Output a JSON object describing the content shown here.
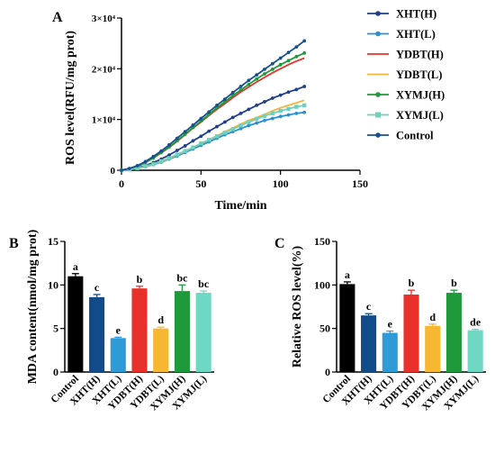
{
  "chart_data": [
    {
      "panel_label": "A",
      "type": "line",
      "xlabel": "Time/min",
      "ylabel": "ROS level(RFU/mg prot)",
      "xlim": [
        0,
        150
      ],
      "ylim": [
        0,
        30000
      ],
      "x_ticks": [
        "0",
        "50",
        "100",
        "150"
      ],
      "y_ticks": [
        "0",
        "1×10⁴",
        "2×10⁴",
        "3×10⁴"
      ],
      "x": [
        0,
        5,
        10,
        15,
        20,
        25,
        30,
        35,
        40,
        45,
        50,
        55,
        60,
        65,
        70,
        75,
        80,
        85,
        90,
        95,
        100,
        105,
        110,
        115
      ],
      "legend_position": "right",
      "series": [
        {
          "name": "XHT(H)",
          "color": "#1f3f8a",
          "marker": "circle",
          "values": [
            0,
            200,
            500,
            900,
            1500,
            2200,
            3000,
            3900,
            4800,
            5800,
            6700,
            7700,
            8600,
            9500,
            10400,
            11200,
            12000,
            12800,
            13500,
            14200,
            14800,
            15400,
            15900,
            16500
          ]
        },
        {
          "name": "XHT(L)",
          "color": "#2b8fd0",
          "marker": "circle",
          "values": [
            0,
            150,
            400,
            700,
            1100,
            1600,
            2200,
            2800,
            3500,
            4200,
            4900,
            5600,
            6300,
            7000,
            7600,
            8200,
            8800,
            9300,
            9800,
            10200,
            10600,
            10900,
            11200,
            11400
          ]
        },
        {
          "name": "YDBT(H)",
          "color": "#e8312a",
          "marker": "none",
          "values": [
            0,
            300,
            800,
            1500,
            2400,
            3400,
            4500,
            5700,
            7000,
            8300,
            9500,
            10800,
            12000,
            13100,
            14300,
            15400,
            16400,
            17400,
            18300,
            19200,
            20000,
            20800,
            21500,
            22100
          ]
        },
        {
          "name": "YDBT(L)",
          "color": "#f5b43a",
          "marker": "none",
          "values": [
            0,
            150,
            400,
            700,
            1200,
            1700,
            2300,
            3000,
            3700,
            4500,
            5200,
            6000,
            6800,
            7600,
            8300,
            9100,
            9800,
            10400,
            11000,
            11700,
            12300,
            12800,
            13300,
            13800
          ]
        },
        {
          "name": "XYMJ(H)",
          "color": "#1e9a3b",
          "marker": "circle",
          "values": [
            0,
            300,
            800,
            1500,
            2400,
            3500,
            4600,
            5800,
            7100,
            8400,
            9700,
            11000,
            12300,
            13500,
            14700,
            15800,
            16900,
            18000,
            19000,
            19900,
            20800,
            21600,
            22400,
            23100
          ]
        },
        {
          "name": "XYMJ(L)",
          "color": "#6fd1bd",
          "marker": "square",
          "values": [
            0,
            150,
            400,
            800,
            1200,
            1800,
            2400,
            3100,
            3800,
            4500,
            5300,
            6000,
            6700,
            7400,
            8100,
            8800,
            9500,
            10100,
            10700,
            11200,
            11700,
            12100,
            12500,
            12800
          ]
        },
        {
          "name": "Control",
          "color": "#1a4f8f",
          "marker": "circle",
          "values": [
            0,
            350,
            900,
            1700,
            2700,
            3800,
            5000,
            6300,
            7600,
            8900,
            10200,
            11500,
            12800,
            14000,
            15300,
            16500,
            17700,
            18800,
            19900,
            21000,
            22100,
            23200,
            24300,
            25500
          ]
        }
      ]
    },
    {
      "panel_label": "B",
      "type": "bar",
      "ylabel": "MDA content(nmol/mg prot)",
      "ylim": [
        0,
        15
      ],
      "y_ticks": [
        "0",
        "5",
        "10",
        "15"
      ],
      "categories": [
        "Control",
        "XHT(H)",
        "XHT(L)",
        "YDBT(H)",
        "YDBT(L)",
        "XYMJ(H)",
        "XYMJ(L)"
      ],
      "values": [
        11.0,
        8.6,
        3.9,
        9.6,
        5.0,
        9.3,
        9.1
      ],
      "errors": [
        0.3,
        0.3,
        0.1,
        0.25,
        0.15,
        0.7,
        0.2
      ],
      "letters": [
        "a",
        "c",
        "e",
        "b",
        "d",
        "bc",
        "bc"
      ],
      "colors": [
        "#000000",
        "#124b8a",
        "#2f9bd6",
        "#e8312a",
        "#f7b733",
        "#1e9a3b",
        "#6fd8c4"
      ]
    },
    {
      "panel_label": "C",
      "type": "bar",
      "ylabel": "Relative ROS level(%)",
      "ylim": [
        0,
        150
      ],
      "y_ticks": [
        "0",
        "50",
        "100",
        "150"
      ],
      "categories": [
        "Control",
        "XHT(H)",
        "XHT(L)",
        "YDBT(H)",
        "YDBT(L)",
        "XYMJ(H)",
        "XYMJ(L)"
      ],
      "values": [
        101,
        65,
        45,
        89,
        53,
        91,
        48
      ],
      "errors": [
        2.5,
        2.0,
        2.0,
        5.0,
        2.0,
        3.0,
        1.0
      ],
      "letters": [
        "a",
        "c",
        "e",
        "b",
        "d",
        "b",
        "de"
      ],
      "colors": [
        "#000000",
        "#124b8a",
        "#2f9bd6",
        "#e8312a",
        "#f7b733",
        "#1e9a3b",
        "#6fd8c4"
      ]
    }
  ]
}
